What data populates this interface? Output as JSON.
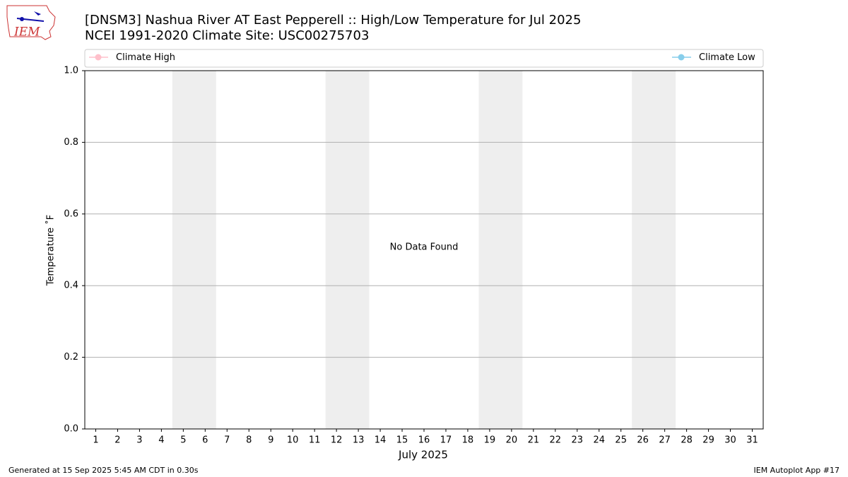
{
  "logo_text": "IEM",
  "chart_data": {
    "type": "line",
    "title": "[DNSM3] Nashua River  AT East Pepperell :: High/Low Temperature for Jul 2025",
    "subtitle": "NCEI 1991-2020 Climate Site: USC00275703",
    "x_label": "July 2025",
    "y_label": "Temperature ˚F",
    "annotation": "No Data Found",
    "footer_left": "Generated at 15 Sep 2025 5:45 AM CDT in 0.30s",
    "footer_right": "IEM Autoplot App #17",
    "series": [
      {
        "name": "Climate High",
        "color": "#ffc0cb"
      },
      {
        "name": "Climate Low",
        "color": "#87ceeb"
      }
    ],
    "shaded_spans": [
      [
        4.5,
        6.5
      ],
      [
        11.5,
        13.5
      ],
      [
        18.5,
        20.5
      ],
      [
        25.5,
        27.5
      ]
    ],
    "shade_color": "#eeeeee",
    "xlim": [
      0.5,
      31.5
    ],
    "xticks": [
      1,
      2,
      3,
      4,
      5,
      6,
      7,
      8,
      9,
      10,
      11,
      12,
      13,
      14,
      15,
      16,
      17,
      18,
      19,
      20,
      21,
      22,
      23,
      24,
      25,
      26,
      27,
      28,
      29,
      30,
      31
    ],
    "ylim": [
      0,
      1
    ],
    "yticks": [
      {
        "value": 0,
        "label": "0.0"
      },
      0.2,
      0.4,
      0.6,
      0.8,
      {
        "value": 1,
        "label": "1.0"
      }
    ],
    "grid": true,
    "legend": "top"
  }
}
